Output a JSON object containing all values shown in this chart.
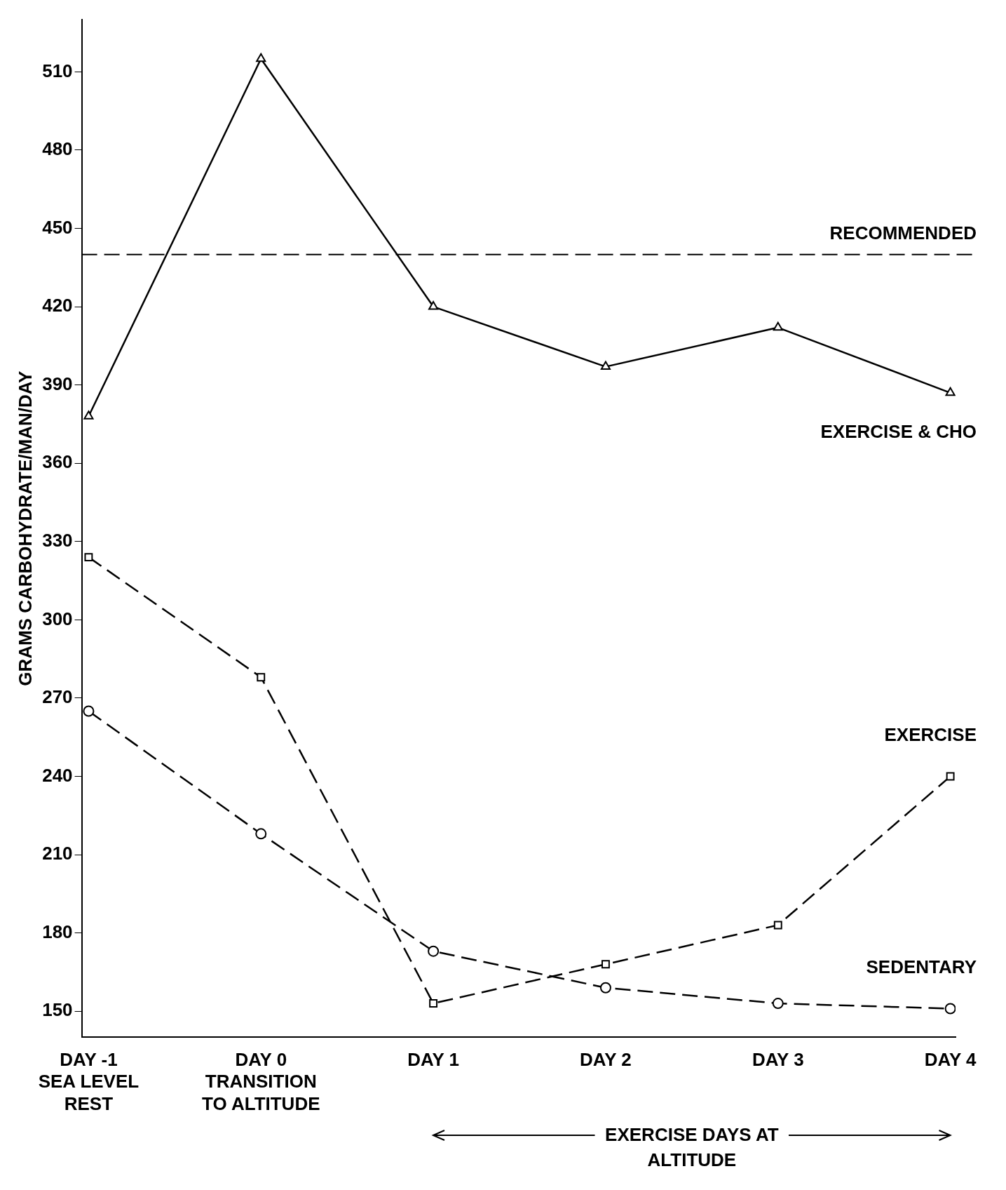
{
  "chart_data": {
    "type": "line",
    "ylabel": "GRAMS CARBOHYDRATE/MAN/DAY",
    "categories": [
      "DAY -1\nSEA LEVEL\nREST",
      "DAY 0\nTRANSITION\nTO ALTITUDE",
      "DAY 1",
      "DAY 2",
      "DAY 3",
      "DAY 4"
    ],
    "series": [
      {
        "name": "EXERCISE & CHO",
        "color": "#000000",
        "marker": "triangle",
        "line_style": "solid",
        "values": [
          378,
          515,
          420,
          397,
          412,
          387
        ]
      },
      {
        "name": "EXERCISE",
        "color": "#000000",
        "marker": "square",
        "line_style": "dashed",
        "values": [
          324,
          278,
          153,
          168,
          183,
          240
        ]
      },
      {
        "name": "SEDENTARY",
        "color": "#000000",
        "marker": "circle",
        "line_style": "dashed",
        "values": [
          265,
          218,
          173,
          159,
          153,
          151
        ]
      }
    ],
    "ylim": [
      140,
      530
    ],
    "yticks": [
      150,
      180,
      210,
      240,
      270,
      300,
      330,
      360,
      390,
      420,
      450,
      480,
      510
    ],
    "ref_lines": [
      {
        "axis": "y",
        "value": 440,
        "label": "RECOMMENDED",
        "line_style": "dashed",
        "color": "#000000"
      }
    ],
    "annotations": [
      "EXERCISE DAYS AT ALTITUDE"
    ],
    "grid": false,
    "legend": false
  }
}
